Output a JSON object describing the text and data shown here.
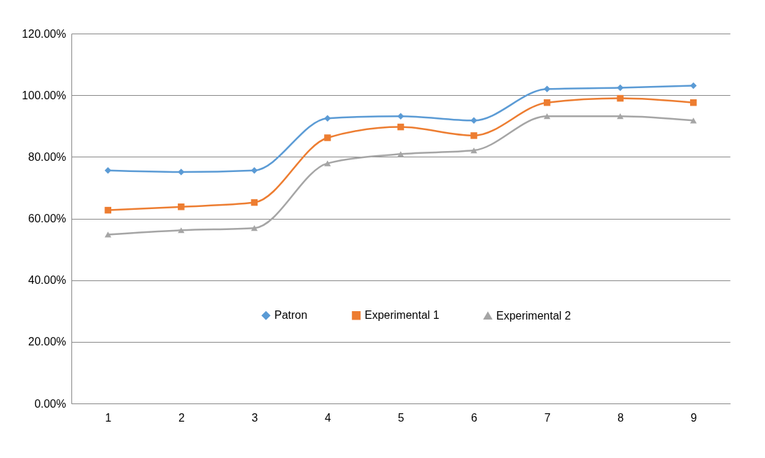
{
  "chart_data": {
    "type": "line",
    "categories": [
      "1",
      "2",
      "3",
      "4",
      "5",
      "6",
      "7",
      "8",
      "9"
    ],
    "series": [
      {
        "name": "Patron",
        "color": "#5b9bd5",
        "marker": "diamond",
        "values": [
          75.6,
          75.1,
          75.6,
          92.5,
          93.2,
          91.8,
          102.0,
          102.4,
          103.1
        ]
      },
      {
        "name": "Experimental 1",
        "color": "#ed7d31",
        "marker": "square",
        "values": [
          62.7,
          63.8,
          65.2,
          86.2,
          89.7,
          86.9,
          97.6,
          99.0,
          97.6
        ]
      },
      {
        "name": "Experimental 2",
        "color": "#a5a5a5",
        "marker": "triangle",
        "values": [
          54.8,
          56.2,
          56.9,
          77.9,
          80.9,
          82.1,
          93.2,
          93.2,
          91.8
        ]
      }
    ],
    "ylim": [
      0,
      120
    ],
    "yticks": [
      {
        "value": 0,
        "label": "0.00%"
      },
      {
        "value": 20,
        "label": "20.00%"
      },
      {
        "value": 40,
        "label": "40.00%"
      },
      {
        "value": 60,
        "label": "60.00%"
      },
      {
        "value": 80,
        "label": "80.00%"
      },
      {
        "value": 100,
        "label": "100.00%"
      },
      {
        "value": 120,
        "label": "120.00%"
      }
    ],
    "grid": "y",
    "legend": "bottom",
    "line_style": "solid"
  }
}
